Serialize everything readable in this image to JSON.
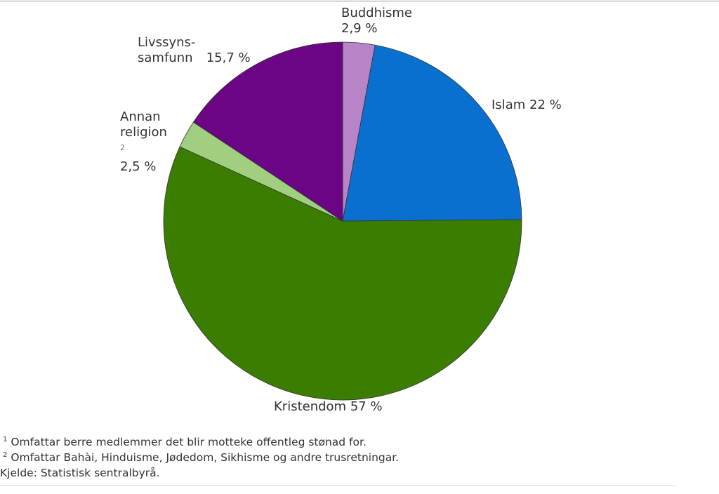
{
  "chart_data": {
    "type": "pie",
    "categories": [
      "Buddhisme",
      "Islam",
      "Kristendom",
      "Annan religion",
      "Livssyns-samfunn"
    ],
    "values": [
      2.9,
      22,
      57,
      2.5,
      15.7
    ],
    "value_labels": [
      "2,9 %",
      "22 %",
      "57 %",
      "2,5 %",
      "15,7 %"
    ],
    "colors": [
      "#b784c8",
      "#0a70d0",
      "#3a7d00",
      "#9fcf7f",
      "#6b0585"
    ],
    "footnotes": [
      {
        "marker": "1",
        "text": "Omfattar berre medlemmer det blir motteke offentleg stønad for."
      },
      {
        "marker": "2",
        "text": "Omfattar Bahài, Hinduisme, Jødedom, Sikhisme og andre trusretningar."
      }
    ],
    "source": "Kjelde: Statistisk sentralbyrå."
  }
}
